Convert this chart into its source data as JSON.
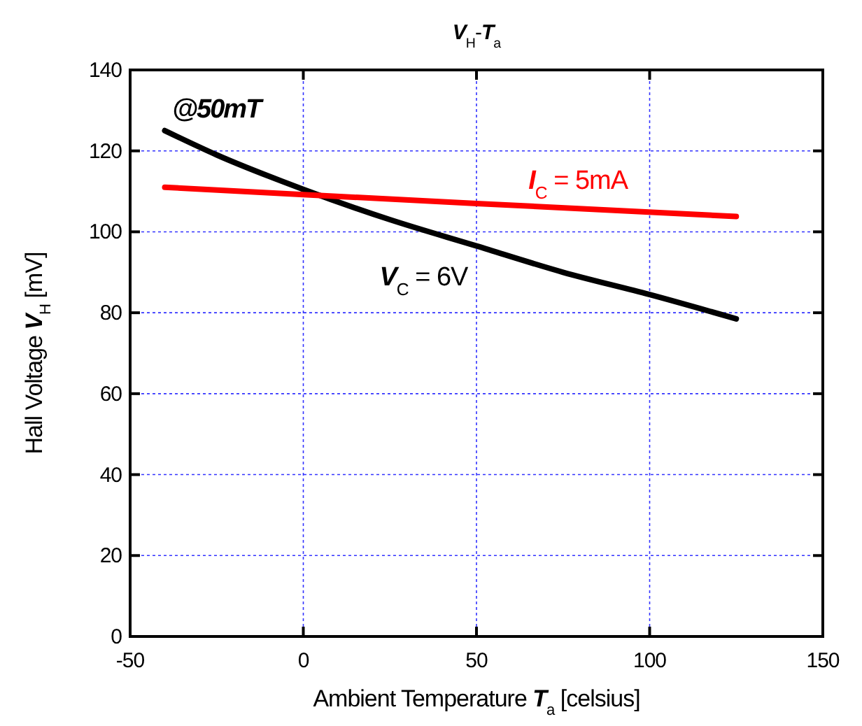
{
  "chart_data": {
    "type": "line",
    "title": "V$_{H}$-T$_{a}$",
    "xlabel": "Ambient Temperature T$_{a}$ [celsius]",
    "ylabel": "Hall Voltage V$_{H}$ [mV]",
    "annotations": [
      "@50mT"
    ],
    "xlim": [
      -50,
      150
    ],
    "xticks": [
      -50,
      0,
      50,
      100,
      150
    ],
    "ylim": [
      0,
      140
    ],
    "yticks": [
      0,
      20,
      40,
      60,
      80,
      100,
      120,
      140
    ],
    "grid": true,
    "marker": "none",
    "line_style": "solid",
    "series": [
      {
        "name": "V$_{C}$ = 6V",
        "color": "#000000",
        "x": [
          -40,
          -25,
          0,
          25,
          50,
          75,
          100,
          125
        ],
        "values": [
          125,
          119,
          110.5,
          103,
          96.5,
          90,
          84.5,
          78.5
        ]
      },
      {
        "name": "I$_{C}$ = 5mA",
        "color": "#ff0000",
        "x": [
          -40,
          0,
          50,
          125
        ],
        "values": [
          111,
          109.2,
          107,
          103.8
        ]
      }
    ]
  }
}
